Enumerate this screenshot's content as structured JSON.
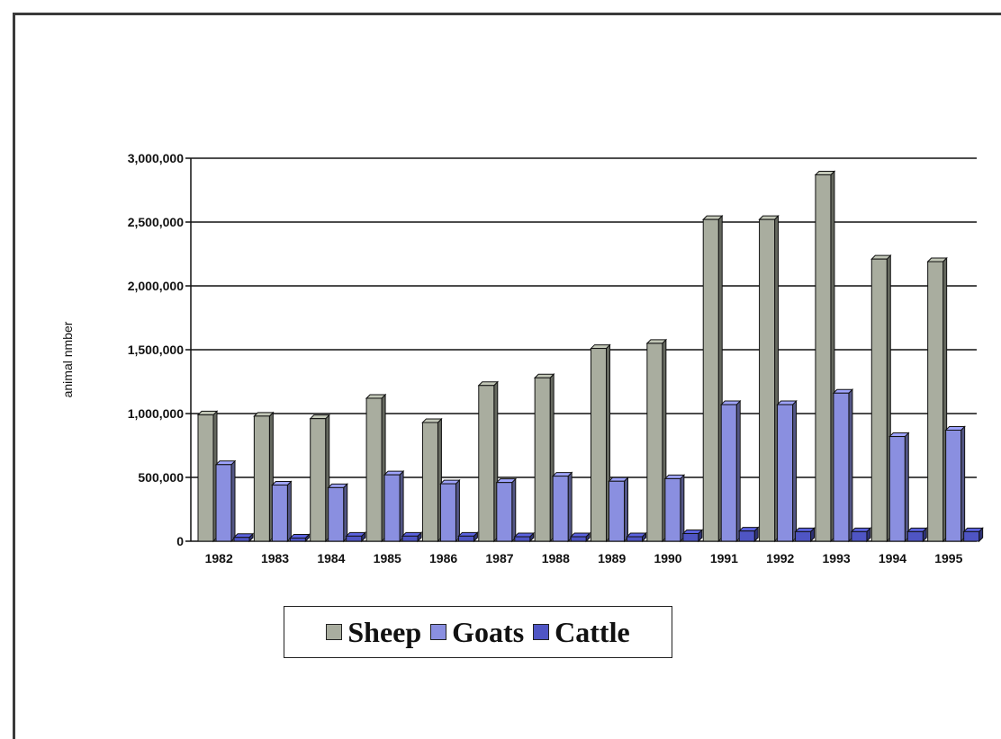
{
  "chart_data": {
    "type": "bar",
    "title": "",
    "xlabel": "",
    "ylabel": "animal nmber",
    "categories": [
      "1982",
      "1983",
      "1984",
      "1985",
      "1986",
      "1987",
      "1988",
      "1989",
      "1990",
      "1991",
      "1992",
      "1993",
      "1994",
      "1995"
    ],
    "series": [
      {
        "name": "Sheep",
        "color": "#a9ad9f",
        "values": [
          990000,
          980000,
          960000,
          1120000,
          930000,
          1220000,
          1280000,
          1510000,
          1550000,
          2520000,
          2520000,
          2870000,
          2210000,
          2190000
        ]
      },
      {
        "name": "Goats",
        "color": "#8a8fe0",
        "values": [
          600000,
          440000,
          420000,
          520000,
          450000,
          460000,
          510000,
          470000,
          490000,
          1070000,
          1070000,
          1160000,
          820000,
          870000
        ]
      },
      {
        "name": "Cattle",
        "color": "#4f55c4",
        "values": [
          30000,
          25000,
          40000,
          40000,
          40000,
          35000,
          35000,
          35000,
          60000,
          80000,
          75000,
          75000,
          75000,
          75000
        ]
      }
    ],
    "ylim": [
      0,
      3000000
    ],
    "yticks": [
      0,
      500000,
      1000000,
      1500000,
      2000000,
      2500000,
      3000000
    ],
    "ytick_labels": [
      "0",
      "500,000",
      "1,000,000",
      "1,500,000",
      "2,000,000",
      "2,500,000",
      "3,000,000"
    ],
    "grid": true,
    "legend_position": "bottom-center"
  }
}
